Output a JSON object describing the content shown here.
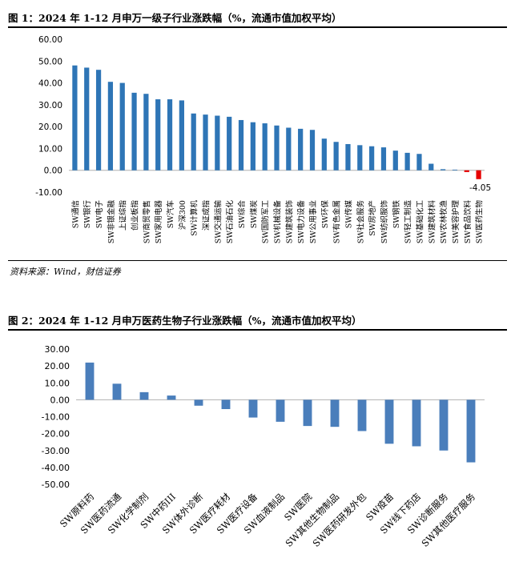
{
  "figure1": {
    "title": "图 1：2024 年 1-12 月申万一级子行业涨跌幅（%，流通市值加权平均）",
    "source": "资料来源：Wind，财信证券"
  },
  "figure2": {
    "title": "图 2：2024 年 1-12 月申万医药生物子行业涨跌幅（%，流通市值加权平均）"
  },
  "chart_data": [
    {
      "type": "bar",
      "ylim": [
        -10,
        60
      ],
      "yticks": [
        "60.00",
        "50.00",
        "40.00",
        "30.00",
        "20.00",
        "10.00",
        "0.00",
        "-10.00"
      ],
      "grid": false,
      "colors": {
        "positive": "#2e75b6",
        "negative": "#e60000"
      },
      "annotations": [
        {
          "category": "SW医药生物",
          "text": "-4.05"
        }
      ],
      "categories": [
        "SW通信",
        "SW银行",
        "SW电子",
        "SW非银金融",
        "上证综指",
        "创业板指",
        "SW商贸零售",
        "SW家用电器",
        "SW汽车",
        "沪深300",
        "SW计算机",
        "深证成指",
        "SW交通运输",
        "SW石油石化",
        "SW综合",
        "SW煤炭",
        "SW国防军工",
        "SW机械设备",
        "SW建筑装饰",
        "SW电力设备",
        "SW公用事业",
        "SW环保",
        "SW有色金属",
        "SW传媒",
        "SW社会服务",
        "SW房地产",
        "SW纺织服饰",
        "SW钢铁",
        "SW轻工制造",
        "SW基础化工",
        "SW建筑材料",
        "SW农林牧渔",
        "SW美容护理",
        "SW食品饮料",
        "SW医药生物"
      ],
      "values": [
        48.0,
        47.0,
        46.0,
        40.5,
        40.0,
        35.5,
        35.0,
        32.5,
        32.5,
        32.0,
        26.0,
        25.5,
        25.0,
        24.5,
        23.0,
        22.0,
        21.5,
        20.5,
        19.5,
        19.0,
        18.5,
        14.5,
        13.0,
        12.0,
        11.5,
        11.0,
        10.5,
        9.0,
        8.0,
        7.5,
        3.0,
        0.5,
        0.3,
        -0.8,
        -4.05
      ]
    },
    {
      "type": "bar",
      "ylim": [
        -50,
        30
      ],
      "yticks": [
        "30.00",
        "20.00",
        "10.00",
        "0.00",
        "-10.00",
        "-20.00",
        "-30.00",
        "-40.00",
        "-50.00"
      ],
      "grid": false,
      "colors": {
        "bar": "#4a7ebb"
      },
      "categories": [
        "SW原料药",
        "SW医药流通",
        "SW化学制剂",
        "SW中药III",
        "SW体外诊断",
        "SW医疗耗材",
        "SW医疗设备",
        "SW血液制品",
        "SW医院",
        "SW其他生物制品",
        "SW医药研发外包",
        "SW疫苗",
        "SW线下药店",
        "SW诊断服务",
        "SW其他医疗服务"
      ],
      "values": [
        22.0,
        9.5,
        4.5,
        2.5,
        -3.5,
        -5.5,
        -10.5,
        -13.0,
        -15.5,
        -16.0,
        -18.5,
        -26.0,
        -27.5,
        -30.0,
        -37.0
      ]
    }
  ]
}
